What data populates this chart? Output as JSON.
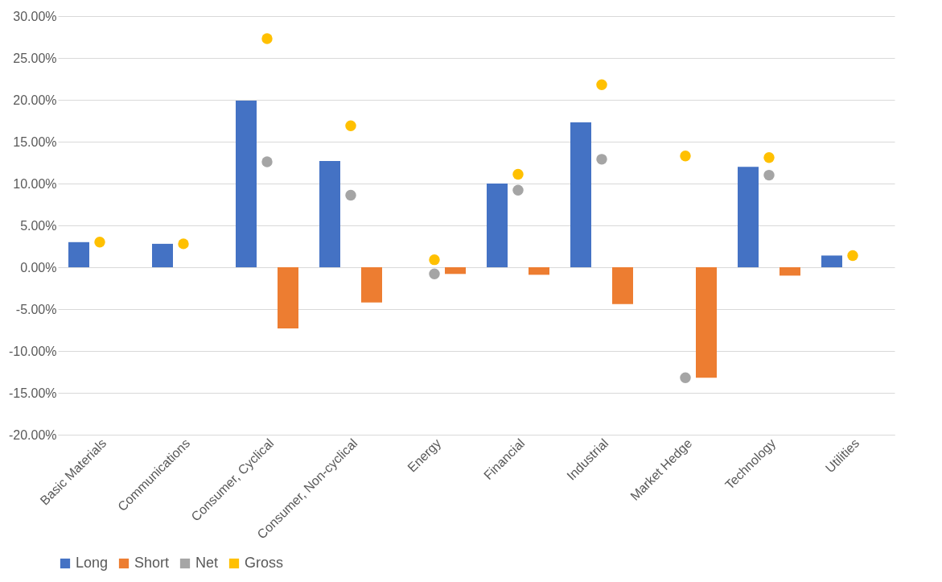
{
  "chart_data": {
    "type": "bar",
    "categories": [
      "Basic Materials",
      "Communications",
      "Consumer, Cyclical",
      "Consumer, Non-cyclical",
      "Energy",
      "Financial",
      "Industrial",
      "Market Hedge",
      "Technology",
      "Utilities"
    ],
    "series": [
      {
        "name": "Long",
        "color": "#4472c4",
        "values": [
          3.0,
          2.8,
          19.9,
          12.7,
          null,
          10.0,
          17.3,
          null,
          12.0,
          1.4
        ]
      },
      {
        "name": "Short",
        "color": "#ed7d31",
        "values": [
          null,
          null,
          -7.3,
          -4.2,
          -0.8,
          -0.9,
          -4.4,
          -13.2,
          -1.0,
          null
        ]
      },
      {
        "name": "Net",
        "type": "scatter",
        "color": "#a5a5a5",
        "values": [
          null,
          null,
          12.6,
          8.6,
          -0.8,
          9.2,
          12.9,
          -13.2,
          11.0,
          null
        ]
      },
      {
        "name": "Gross",
        "type": "scatter",
        "color": "#ffc000",
        "values": [
          3.0,
          2.8,
          27.3,
          16.9,
          0.9,
          11.1,
          21.8,
          13.3,
          13.1,
          1.4
        ]
      }
    ],
    "ylim": [
      -20,
      30
    ],
    "yticks": [
      {
        "value": -20,
        "label": "-20.00%"
      },
      {
        "value": -15,
        "label": "-15.00%"
      },
      {
        "value": -10,
        "label": "-10.00%"
      },
      {
        "value": -5,
        "label": "-5.00%"
      },
      {
        "value": 0,
        "label": "0.00%"
      },
      {
        "value": 5,
        "label": "5.00%"
      },
      {
        "value": 10,
        "label": "10.00%"
      },
      {
        "value": 15,
        "label": "15.00%"
      },
      {
        "value": 20,
        "label": "20.00%"
      },
      {
        "value": 25,
        "label": "25.00%"
      },
      {
        "value": 30,
        "label": "30.00%"
      }
    ],
    "grid": "y",
    "legend": "bottom",
    "marker": "circle"
  }
}
